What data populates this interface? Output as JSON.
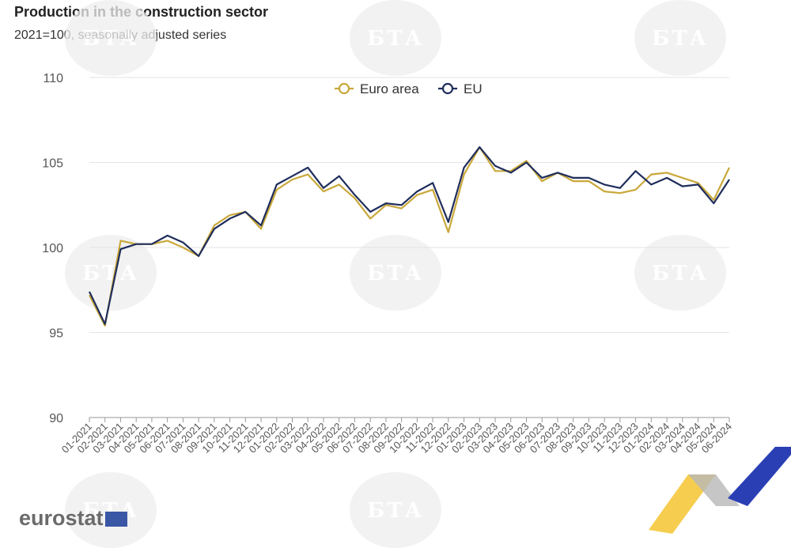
{
  "header": {
    "title": "Production in the construction sector",
    "subtitle": "2021=100, seasonally adjusted series"
  },
  "watermark": {
    "text": "БТА"
  },
  "logo": {
    "text": "eurostat"
  },
  "colors": {
    "euro_area": "#c9a83a",
    "eu": "#1f2d5c",
    "grid": "#e3e3e3",
    "axis": "#9a9a9a",
    "text": "#555555"
  },
  "chart_data": {
    "type": "line",
    "ylim": [
      90,
      110
    ],
    "yticks": [
      90,
      95,
      100,
      105,
      110
    ],
    "grid": true,
    "legend": "top-center",
    "x": [
      "01-2021",
      "02-2021",
      "03-2021",
      "04-2021",
      "05-2021",
      "06-2021",
      "07-2021",
      "08-2021",
      "09-2021",
      "10-2021",
      "11-2021",
      "12-2021",
      "01-2022",
      "02-2022",
      "03-2022",
      "04-2022",
      "05-2022",
      "06-2022",
      "07-2022",
      "08-2022",
      "09-2022",
      "10-2022",
      "11-2022",
      "12-2022",
      "01-2023",
      "02-2023",
      "03-2023",
      "04-2023",
      "05-2023",
      "06-2023",
      "07-2023",
      "08-2023",
      "09-2023",
      "10-2023",
      "11-2023",
      "12-2023",
      "01-2024",
      "02-2024",
      "03-2024",
      "04-2024",
      "05-2024",
      "06-2024"
    ],
    "series": [
      {
        "name": "Euro area",
        "values": [
          97.2,
          95.4,
          100.4,
          100.2,
          100.2,
          100.4,
          100.0,
          99.5,
          101.3,
          101.9,
          102.1,
          101.1,
          103.4,
          104.0,
          104.3,
          103.3,
          103.7,
          102.9,
          101.7,
          102.5,
          102.3,
          103.1,
          103.4,
          100.9,
          104.3,
          105.9,
          104.5,
          104.5,
          105.1,
          103.9,
          104.4,
          103.9,
          103.9,
          103.3,
          103.2,
          103.4,
          104.3,
          104.4,
          104.1,
          103.8,
          102.8,
          104.7
        ]
      },
      {
        "name": "EU",
        "values": [
          97.4,
          95.5,
          99.9,
          100.2,
          100.2,
          100.7,
          100.3,
          99.5,
          101.1,
          101.7,
          102.1,
          101.3,
          103.7,
          104.2,
          104.7,
          103.5,
          104.2,
          103.1,
          102.1,
          102.6,
          102.5,
          103.3,
          103.8,
          101.5,
          104.7,
          105.9,
          104.8,
          104.4,
          105.0,
          104.1,
          104.4,
          104.1,
          104.1,
          103.7,
          103.5,
          104.5,
          103.7,
          104.1,
          103.6,
          103.7,
          102.6,
          104.0
        ]
      }
    ]
  }
}
